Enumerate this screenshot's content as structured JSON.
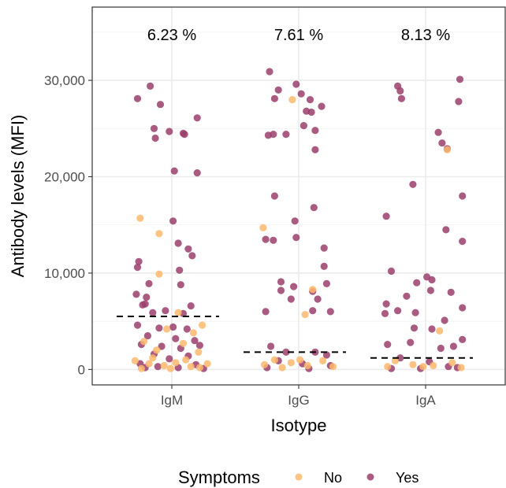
{
  "chart_data": {
    "type": "scatter",
    "title": "",
    "xlabel": "Isotype",
    "ylabel": "Antibody levels (MFI)",
    "ylim": [
      -1600,
      37600
    ],
    "yticks": [
      0,
      10000,
      20000,
      30000
    ],
    "ytick_labels": [
      "0",
      "10,000",
      "20,000",
      "30,000"
    ],
    "categories": [
      "IgM",
      "IgG",
      "IgA"
    ],
    "grid": true,
    "legend": {
      "title": "Symptoms",
      "position": "bottom",
      "entries": [
        "No",
        "Yes"
      ]
    },
    "colors": {
      "No": "#fdb86d",
      "Yes": "#9b3e6c",
      "median_line": "#000000"
    },
    "percentages": [
      "6.23 %",
      "7.61 %",
      "8.13 %"
    ],
    "median_lines": [
      5500,
      1800,
      1200
    ],
    "series": [
      {
        "name": "Yes",
        "points": {
          "IgM": [
            [
              -0.27,
              28100
            ],
            [
              -0.17,
              29400
            ],
            [
              -0.09,
              27500
            ],
            [
              0.2,
              26100
            ],
            [
              -0.14,
              25000
            ],
            [
              -0.13,
              24000
            ],
            [
              -0.02,
              24700
            ],
            [
              0.09,
              24500
            ],
            [
              0.1,
              24400
            ],
            [
              0.02,
              20600
            ],
            [
              0.2,
              20400
            ],
            [
              0.01,
              15400
            ],
            [
              0.05,
              13100
            ],
            [
              0.13,
              12500
            ],
            [
              0.16,
              11800
            ],
            [
              -0.26,
              11200
            ],
            [
              -0.27,
              10600
            ],
            [
              0.06,
              10300
            ],
            [
              -0.18,
              8900
            ],
            [
              0.07,
              8800
            ],
            [
              -0.28,
              7800
            ],
            [
              -0.2,
              7500
            ],
            [
              -0.21,
              6800
            ],
            [
              -0.23,
              6700
            ],
            [
              0.15,
              6600
            ],
            [
              -0.15,
              5900
            ],
            [
              -0.05,
              6100
            ],
            [
              0.09,
              5800
            ],
            [
              -0.27,
              4600
            ],
            [
              -0.1,
              4300
            ],
            [
              0.01,
              4400
            ],
            [
              0.12,
              4200
            ],
            [
              -0.19,
              3500
            ],
            [
              0.03,
              3200
            ],
            [
              0.18,
              3000
            ],
            [
              -0.24,
              2600
            ],
            [
              -0.08,
              2400
            ],
            [
              0.07,
              2200
            ],
            [
              0.22,
              2500
            ],
            [
              -0.14,
              1600
            ],
            [
              0.13,
              1400
            ],
            [
              -0.02,
              1100
            ],
            [
              -0.25,
              600
            ],
            [
              -0.11,
              300
            ],
            [
              0.05,
              200
            ],
            [
              0.19,
              500
            ],
            [
              0.25,
              100
            ],
            [
              -0.21,
              200
            ]
          ],
          "IgG": [
            [
              -0.23,
              30900
            ],
            [
              -0.16,
              29000
            ],
            [
              -0.19,
              28100
            ],
            [
              -0.02,
              29600
            ],
            [
              0.02,
              28600
            ],
            [
              0.09,
              28000
            ],
            [
              0.18,
              27300
            ],
            [
              0.06,
              26800
            ],
            [
              0.1,
              26700
            ],
            [
              0.04,
              25300
            ],
            [
              -0.24,
              24300
            ],
            [
              -0.2,
              24400
            ],
            [
              -0.1,
              24400
            ],
            [
              0.13,
              24800
            ],
            [
              0.13,
              22800
            ],
            [
              -0.19,
              18000
            ],
            [
              0.12,
              16800
            ],
            [
              -0.03,
              15400
            ],
            [
              -0.26,
              13500
            ],
            [
              -0.2,
              13400
            ],
            [
              -0.02,
              13700
            ],
            [
              0.2,
              12600
            ],
            [
              0.2,
              10700
            ],
            [
              -0.14,
              9100
            ],
            [
              -0.04,
              8600
            ],
            [
              0.22,
              8900
            ],
            [
              -0.14,
              8200
            ],
            [
              0.11,
              8100
            ],
            [
              -0.06,
              7300
            ],
            [
              0.15,
              7300
            ],
            [
              -0.26,
              6000
            ],
            [
              0.11,
              6100
            ],
            [
              0.25,
              6000
            ],
            [
              -0.22,
              2400
            ],
            [
              -0.1,
              1800
            ],
            [
              0.13,
              1800
            ],
            [
              0.22,
              1500
            ],
            [
              -0.16,
              900
            ],
            [
              0.03,
              600
            ],
            [
              0.25,
              400
            ],
            [
              -0.25,
              200
            ],
            [
              0.08,
              100
            ]
          ],
          "IgA": [
            [
              -0.22,
              29400
            ],
            [
              -0.2,
              28900
            ],
            [
              -0.19,
              28100
            ],
            [
              0.27,
              30100
            ],
            [
              0.26,
              27800
            ],
            [
              0.1,
              24600
            ],
            [
              0.13,
              23500
            ],
            [
              0.17,
              22900
            ],
            [
              -0.1,
              19200
            ],
            [
              0.29,
              18000
            ],
            [
              -0.31,
              15900
            ],
            [
              0.16,
              14500
            ],
            [
              0.29,
              13300
            ],
            [
              -0.27,
              10200
            ],
            [
              0.01,
              9600
            ],
            [
              -0.07,
              9000
            ],
            [
              0.05,
              9300
            ],
            [
              0.04,
              8200
            ],
            [
              0.2,
              8000
            ],
            [
              -0.31,
              6800
            ],
            [
              -0.15,
              7600
            ],
            [
              0.29,
              6400
            ],
            [
              -0.22,
              6100
            ],
            [
              -0.32,
              5800
            ],
            [
              -0.08,
              5900
            ],
            [
              0.15,
              5100
            ],
            [
              -0.09,
              4300
            ],
            [
              0.05,
              4200
            ],
            [
              0.29,
              3100
            ],
            [
              -0.3,
              2600
            ],
            [
              -0.12,
              2800
            ],
            [
              0.12,
              2200
            ],
            [
              0.22,
              2400
            ],
            [
              -0.2,
              1200
            ],
            [
              0.03,
              800
            ],
            [
              0.18,
              300
            ],
            [
              -0.27,
              100
            ],
            [
              0.25,
              200
            ],
            [
              -0.04,
              100
            ]
          ]
        }
      },
      {
        "name": "No",
        "points": {
          "IgM": [
            [
              -0.25,
              15700
            ],
            [
              -0.1,
              14100
            ],
            [
              -0.1,
              9900
            ],
            [
              0.05,
              5900
            ],
            [
              0.24,
              4600
            ],
            [
              -0.04,
              4200
            ],
            [
              0.17,
              3800
            ],
            [
              -0.22,
              2900
            ],
            [
              0.09,
              2700
            ],
            [
              -0.12,
              2000
            ],
            [
              0.21,
              1800
            ],
            [
              -0.29,
              900
            ],
            [
              -0.18,
              600
            ],
            [
              -0.06,
              400
            ],
            [
              0.03,
              700
            ],
            [
              0.15,
              300
            ],
            [
              0.28,
              600
            ],
            [
              -0.24,
              100
            ],
            [
              -0.01,
              100
            ],
            [
              0.11,
              1000
            ],
            [
              -0.15,
              1200
            ],
            [
              0.22,
              200
            ]
          ],
          "IgG": [
            [
              -0.05,
              28000
            ],
            [
              -0.28,
              14700
            ],
            [
              0.11,
              8300
            ],
            [
              0.05,
              5700
            ],
            [
              -0.19,
              1000
            ],
            [
              -0.06,
              700
            ],
            [
              0.07,
              400
            ],
            [
              0.19,
              900
            ],
            [
              -0.27,
              500
            ],
            [
              0.27,
              300
            ],
            [
              0.01,
              1000
            ],
            [
              -0.13,
              200
            ]
          ],
          "IgA": [
            [
              0.17,
              22800
            ],
            [
              0.11,
              4000
            ],
            [
              -0.24,
              900
            ],
            [
              -0.1,
              500
            ],
            [
              0.06,
              400
            ],
            [
              0.21,
              700
            ],
            [
              -0.3,
              300
            ],
            [
              0.28,
              200
            ],
            [
              -0.02,
              300
            ]
          ]
        }
      }
    ]
  }
}
